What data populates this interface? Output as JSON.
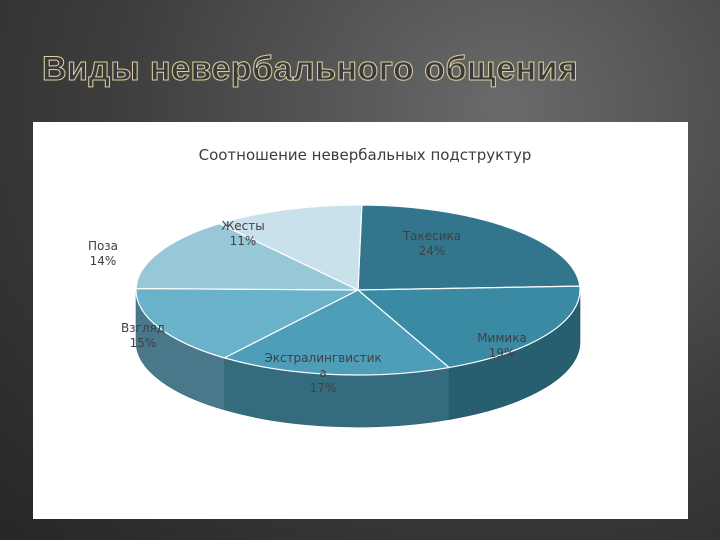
{
  "slide": {
    "title": "Виды невербального общения"
  },
  "chart_data": {
    "type": "pie",
    "title": "Соотношение невербальных подструктур",
    "categories": [
      "Такесика",
      "Мимика",
      "Экстралингвистика",
      "Взгляд",
      "Поза",
      "Жесты"
    ],
    "values": [
      24,
      19,
      17,
      15,
      14,
      11
    ],
    "value_labels": [
      "24%",
      "19%",
      "17%",
      "15%",
      "14%",
      "11%"
    ],
    "label_lines": [
      [
        "Такесика",
        "24%"
      ],
      [
        "Мимика",
        "19%"
      ],
      [
        "Экстралингвистик",
        "а",
        "17%"
      ],
      [
        "Взгляд",
        "15%"
      ],
      [
        "Поза",
        "14%"
      ],
      [
        "Жесты",
        "11%"
      ]
    ],
    "colors": [
      "#33758d",
      "#3a8aa4",
      "#4e9eb9",
      "#6ab1ca",
      "#98c7d8",
      "#c8e1ea"
    ],
    "legend": "none",
    "style": "3d"
  }
}
